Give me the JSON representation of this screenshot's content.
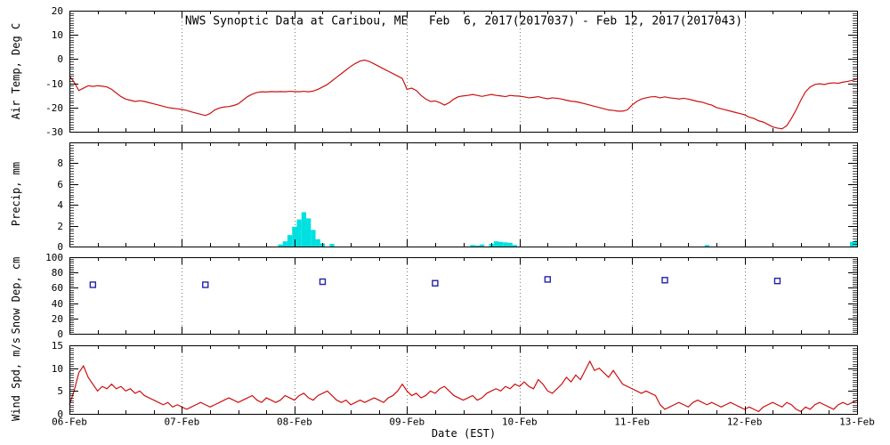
{
  "title": "NWS Synoptic Data at Caribou, ME   Feb  6, 2017(2017037) - Feb 12, 2017(2017043)",
  "xlabel": "Date (EST)",
  "x_axis": {
    "tick_labels": [
      "06-Feb",
      "07-Feb",
      "08-Feb",
      "09-Feb",
      "10-Feb",
      "11-Feb",
      "12-Feb",
      "13-Feb"
    ],
    "total_hours": 168,
    "day_gridline_hours": [
      24,
      48,
      72,
      96,
      120,
      144
    ],
    "x_unit": "hours since 06-Feb 00:00 EST"
  },
  "colors": {
    "temperature_line": "#cc1111",
    "precip_bar": "#00e0e0",
    "snow_marker": "#2222aa",
    "wind_line": "#cc1111",
    "axis": "#000000",
    "grid": "#555555"
  },
  "chart_data": [
    {
      "type": "line",
      "ylabel": "Air Temp, Deg C",
      "ylim": [
        -30,
        20
      ],
      "yticks": [
        20,
        10,
        0,
        -10,
        -20,
        -30
      ],
      "minor_tick_step": 1,
      "color": "#cc1111",
      "x_step_hours": 1,
      "values": [
        -7,
        -9.5,
        -13,
        -12,
        -11,
        -11.3,
        -11,
        -11.2,
        -11.5,
        -12.5,
        -14,
        -15.5,
        -16.5,
        -17,
        -17.5,
        -17.2,
        -17.5,
        -18,
        -18.5,
        -19,
        -19.5,
        -20,
        -20.3,
        -20.5,
        -20.8,
        -21.2,
        -21.8,
        -22.3,
        -22.8,
        -23.3,
        -22.5,
        -21,
        -20.2,
        -19.8,
        -19.6,
        -19.2,
        -18.5,
        -17,
        -15.5,
        -14.5,
        -13.8,
        -13.5,
        -13.6,
        -13.4,
        -13.5,
        -13.4,
        -13.5,
        -13.3,
        -13.4,
        -13.5,
        -13.3,
        -13.5,
        -13.2,
        -12.5,
        -11.5,
        -10.5,
        -9,
        -7.5,
        -6,
        -4.5,
        -3,
        -1.8,
        -0.8,
        -0.4,
        -1,
        -2,
        -3,
        -4,
        -5,
        -6,
        -7,
        -8,
        -12.5,
        -12,
        -13,
        -15,
        -16.5,
        -17.5,
        -17.3,
        -18,
        -19,
        -18,
        -16.5,
        -15.5,
        -15.2,
        -15,
        -14.6,
        -15,
        -15.4,
        -15,
        -14.6,
        -15,
        -15.2,
        -15.5,
        -15,
        -15.2,
        -15.3,
        -15.6,
        -16,
        -15.8,
        -15.5,
        -16,
        -16.4,
        -16,
        -16.2,
        -16.5,
        -17,
        -17.4,
        -17.6,
        -18,
        -18.5,
        -19,
        -19.5,
        -20,
        -20.5,
        -21,
        -21.2,
        -21.5,
        -21.5,
        -21,
        -19,
        -17.5,
        -16.5,
        -16,
        -15.6,
        -15.5,
        -16,
        -15.6,
        -16,
        -16.2,
        -16.5,
        -16.2,
        -16.5,
        -17,
        -17.5,
        -17.8,
        -18.5,
        -19,
        -20,
        -20.5,
        -21,
        -21.5,
        -22,
        -22.5,
        -23,
        -24,
        -24.5,
        -25.5,
        -26,
        -27,
        -28,
        -28.5,
        -28.8,
        -27.5,
        -24.5,
        -21,
        -17,
        -13.5,
        -11.5,
        -10.5,
        -10.2,
        -10.5,
        -10,
        -9.8,
        -10,
        -9.5,
        -9.2,
        -8.8,
        -8.2
      ]
    },
    {
      "type": "bar",
      "ylabel": "Precip, mm",
      "ylim": [
        0,
        10
      ],
      "yticks": [
        8,
        6,
        4,
        2,
        0
      ],
      "minor_tick_step": 0.25,
      "color": "#00e0e0",
      "hours": [
        45,
        46,
        47,
        48,
        49,
        50,
        51,
        52,
        53,
        54,
        56,
        86,
        87,
        88,
        90,
        91,
        92,
        93,
        94,
        95,
        136,
        167,
        168
      ],
      "values": [
        0.2,
        0.5,
        1.1,
        1.9,
        2.6,
        3.3,
        2.7,
        1.6,
        0.7,
        0.3,
        0.25,
        0.15,
        0.1,
        0.2,
        0.25,
        0.5,
        0.45,
        0.4,
        0.35,
        0.15,
        0.15,
        0.45,
        0.6
      ]
    },
    {
      "type": "scatter",
      "marker": "open-square",
      "ylabel": "Snow Dep, cm",
      "ylim": [
        0,
        100
      ],
      "yticks": [
        100,
        80,
        60,
        40,
        20,
        0
      ],
      "minor_tick_step": 2.5,
      "color": "#2222aa",
      "hours": [
        5,
        29,
        54,
        78,
        102,
        127,
        151
      ],
      "values": [
        64,
        64,
        68,
        66,
        71,
        70,
        69
      ]
    },
    {
      "type": "line",
      "ylabel": "Wind Spd, m/s",
      "ylim": [
        0,
        15
      ],
      "yticks": [
        15,
        10,
        5,
        0
      ],
      "minor_tick_step": 0.5,
      "color": "#cc1111",
      "x_step_hours": 1,
      "values": [
        2,
        5,
        9,
        10.5,
        8,
        6.5,
        5,
        6,
        5.5,
        6.5,
        5.5,
        6,
        5,
        5.5,
        4.5,
        5,
        4,
        3.5,
        3,
        2.5,
        2,
        2.5,
        1.5,
        2,
        1.5,
        1,
        1.5,
        2,
        2.5,
        2,
        1.5,
        2,
        2.5,
        3,
        3.5,
        3,
        2.5,
        3,
        3.5,
        4,
        3,
        2.5,
        3.5,
        3,
        2.5,
        3,
        4,
        3.5,
        3,
        4,
        4.5,
        3.5,
        3,
        4,
        4.5,
        5,
        4,
        3,
        2.5,
        3,
        2,
        2.5,
        3,
        2.5,
        3,
        3.5,
        3,
        2.5,
        3.5,
        4,
        5,
        6.5,
        5,
        4,
        4.5,
        3.5,
        4,
        5,
        4.5,
        5.5,
        6,
        5,
        4,
        3.5,
        3,
        3.5,
        4,
        3,
        3.5,
        4.5,
        5,
        5.5,
        5,
        6,
        5.5,
        6.5,
        6,
        7,
        6,
        5.5,
        7.5,
        6.5,
        5,
        4.5,
        5.5,
        6.5,
        8,
        7,
        8.5,
        7.5,
        9.5,
        11.5,
        9.5,
        10,
        9,
        8,
        9.5,
        8,
        6.5,
        6,
        5.5,
        5,
        4.5,
        5,
        4.5,
        4,
        2,
        1,
        1.5,
        2,
        2.5,
        2,
        1.5,
        2.5,
        3,
        2.5,
        2,
        2.5,
        2,
        1.5,
        2,
        2.5,
        2,
        1.5,
        1,
        1.5,
        1,
        0.5,
        1.5,
        2,
        2.5,
        2,
        1.5,
        2.5,
        2,
        1,
        0.5,
        1.5,
        1,
        2,
        2.5,
        2,
        1.5,
        1,
        2,
        2.5,
        2,
        2.5,
        3
      ]
    }
  ]
}
